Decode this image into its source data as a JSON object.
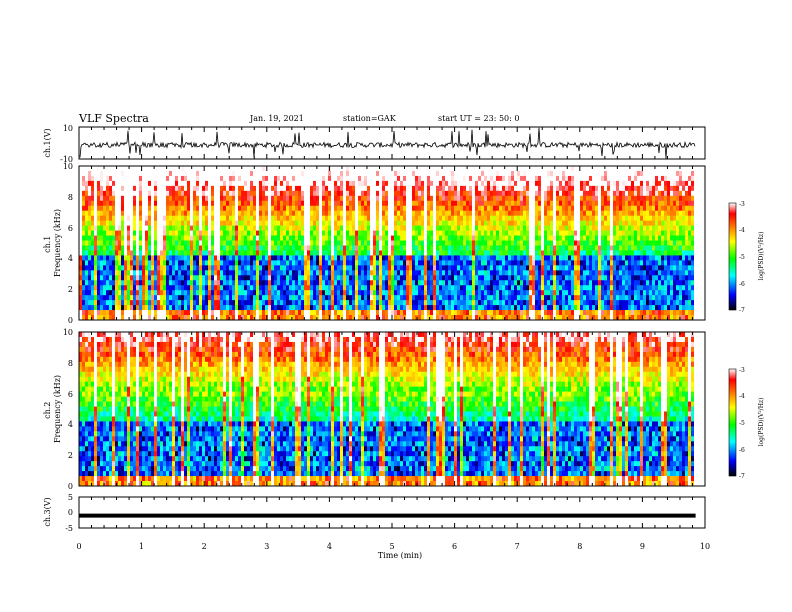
{
  "header": {
    "title": "VLF Spectra",
    "date": "Jan. 19, 2021",
    "station": "station=GAK",
    "start": "start  UT =  23: 50: 0"
  },
  "chart_data": [
    {
      "type": "line",
      "panel": "ch1-waveform",
      "ylabel": "ch.1(V)",
      "ylim": [
        -10,
        10
      ],
      "yticks": [
        "10",
        "-10"
      ],
      "xlim": [
        0,
        10
      ],
      "trace": "noisy waveform centered near 0 V with occasional spikes"
    },
    {
      "type": "heatmap",
      "panel": "ch1-spectrogram",
      "ylabel": "ch.1\nFrequency  (kHz)",
      "ylim": [
        0,
        10
      ],
      "yticks": [
        "0",
        "2",
        "4",
        "6",
        "8",
        "10"
      ],
      "xlim": [
        0,
        10
      ],
      "data_end_min": 9.85,
      "colorbar": {
        "label": "log(PSD)(V²/Hz)",
        "range": [
          -7,
          -3
        ],
        "ticks": [
          "-3",
          "-4",
          "-5",
          "-6",
          "-7"
        ]
      }
    },
    {
      "type": "heatmap",
      "panel": "ch2-spectrogram",
      "ylabel": "ch.2\nFrequency  (kHz)",
      "ylim": [
        0,
        10
      ],
      "yticks": [
        "0",
        "2",
        "4",
        "6",
        "8",
        "10"
      ],
      "xlim": [
        0,
        10
      ],
      "data_end_min": 9.85,
      "colorbar": {
        "label": "log(PSD)(V²/Hz)",
        "range": [
          -7,
          -3
        ],
        "ticks": [
          "-3",
          "-4",
          "-5",
          "-6",
          "-7"
        ]
      }
    },
    {
      "type": "line",
      "panel": "ch3-waveform",
      "ylabel": "ch.3(V)",
      "ylim": [
        -5,
        5
      ],
      "yticks": [
        "5",
        "0",
        "-5"
      ],
      "xlim": [
        0,
        10
      ],
      "xlabel": "Time  (min)",
      "xticks": [
        "0",
        "1",
        "2",
        "3",
        "4",
        "5",
        "6",
        "7",
        "8",
        "9",
        "10"
      ],
      "trace_value": -1
    }
  ],
  "colors": {
    "colormap": [
      "#000000",
      "#0000ff",
      "#00ffff",
      "#00ff00",
      "#ffff00",
      "#ff8000",
      "#ff0000",
      "#ffffff"
    ]
  }
}
